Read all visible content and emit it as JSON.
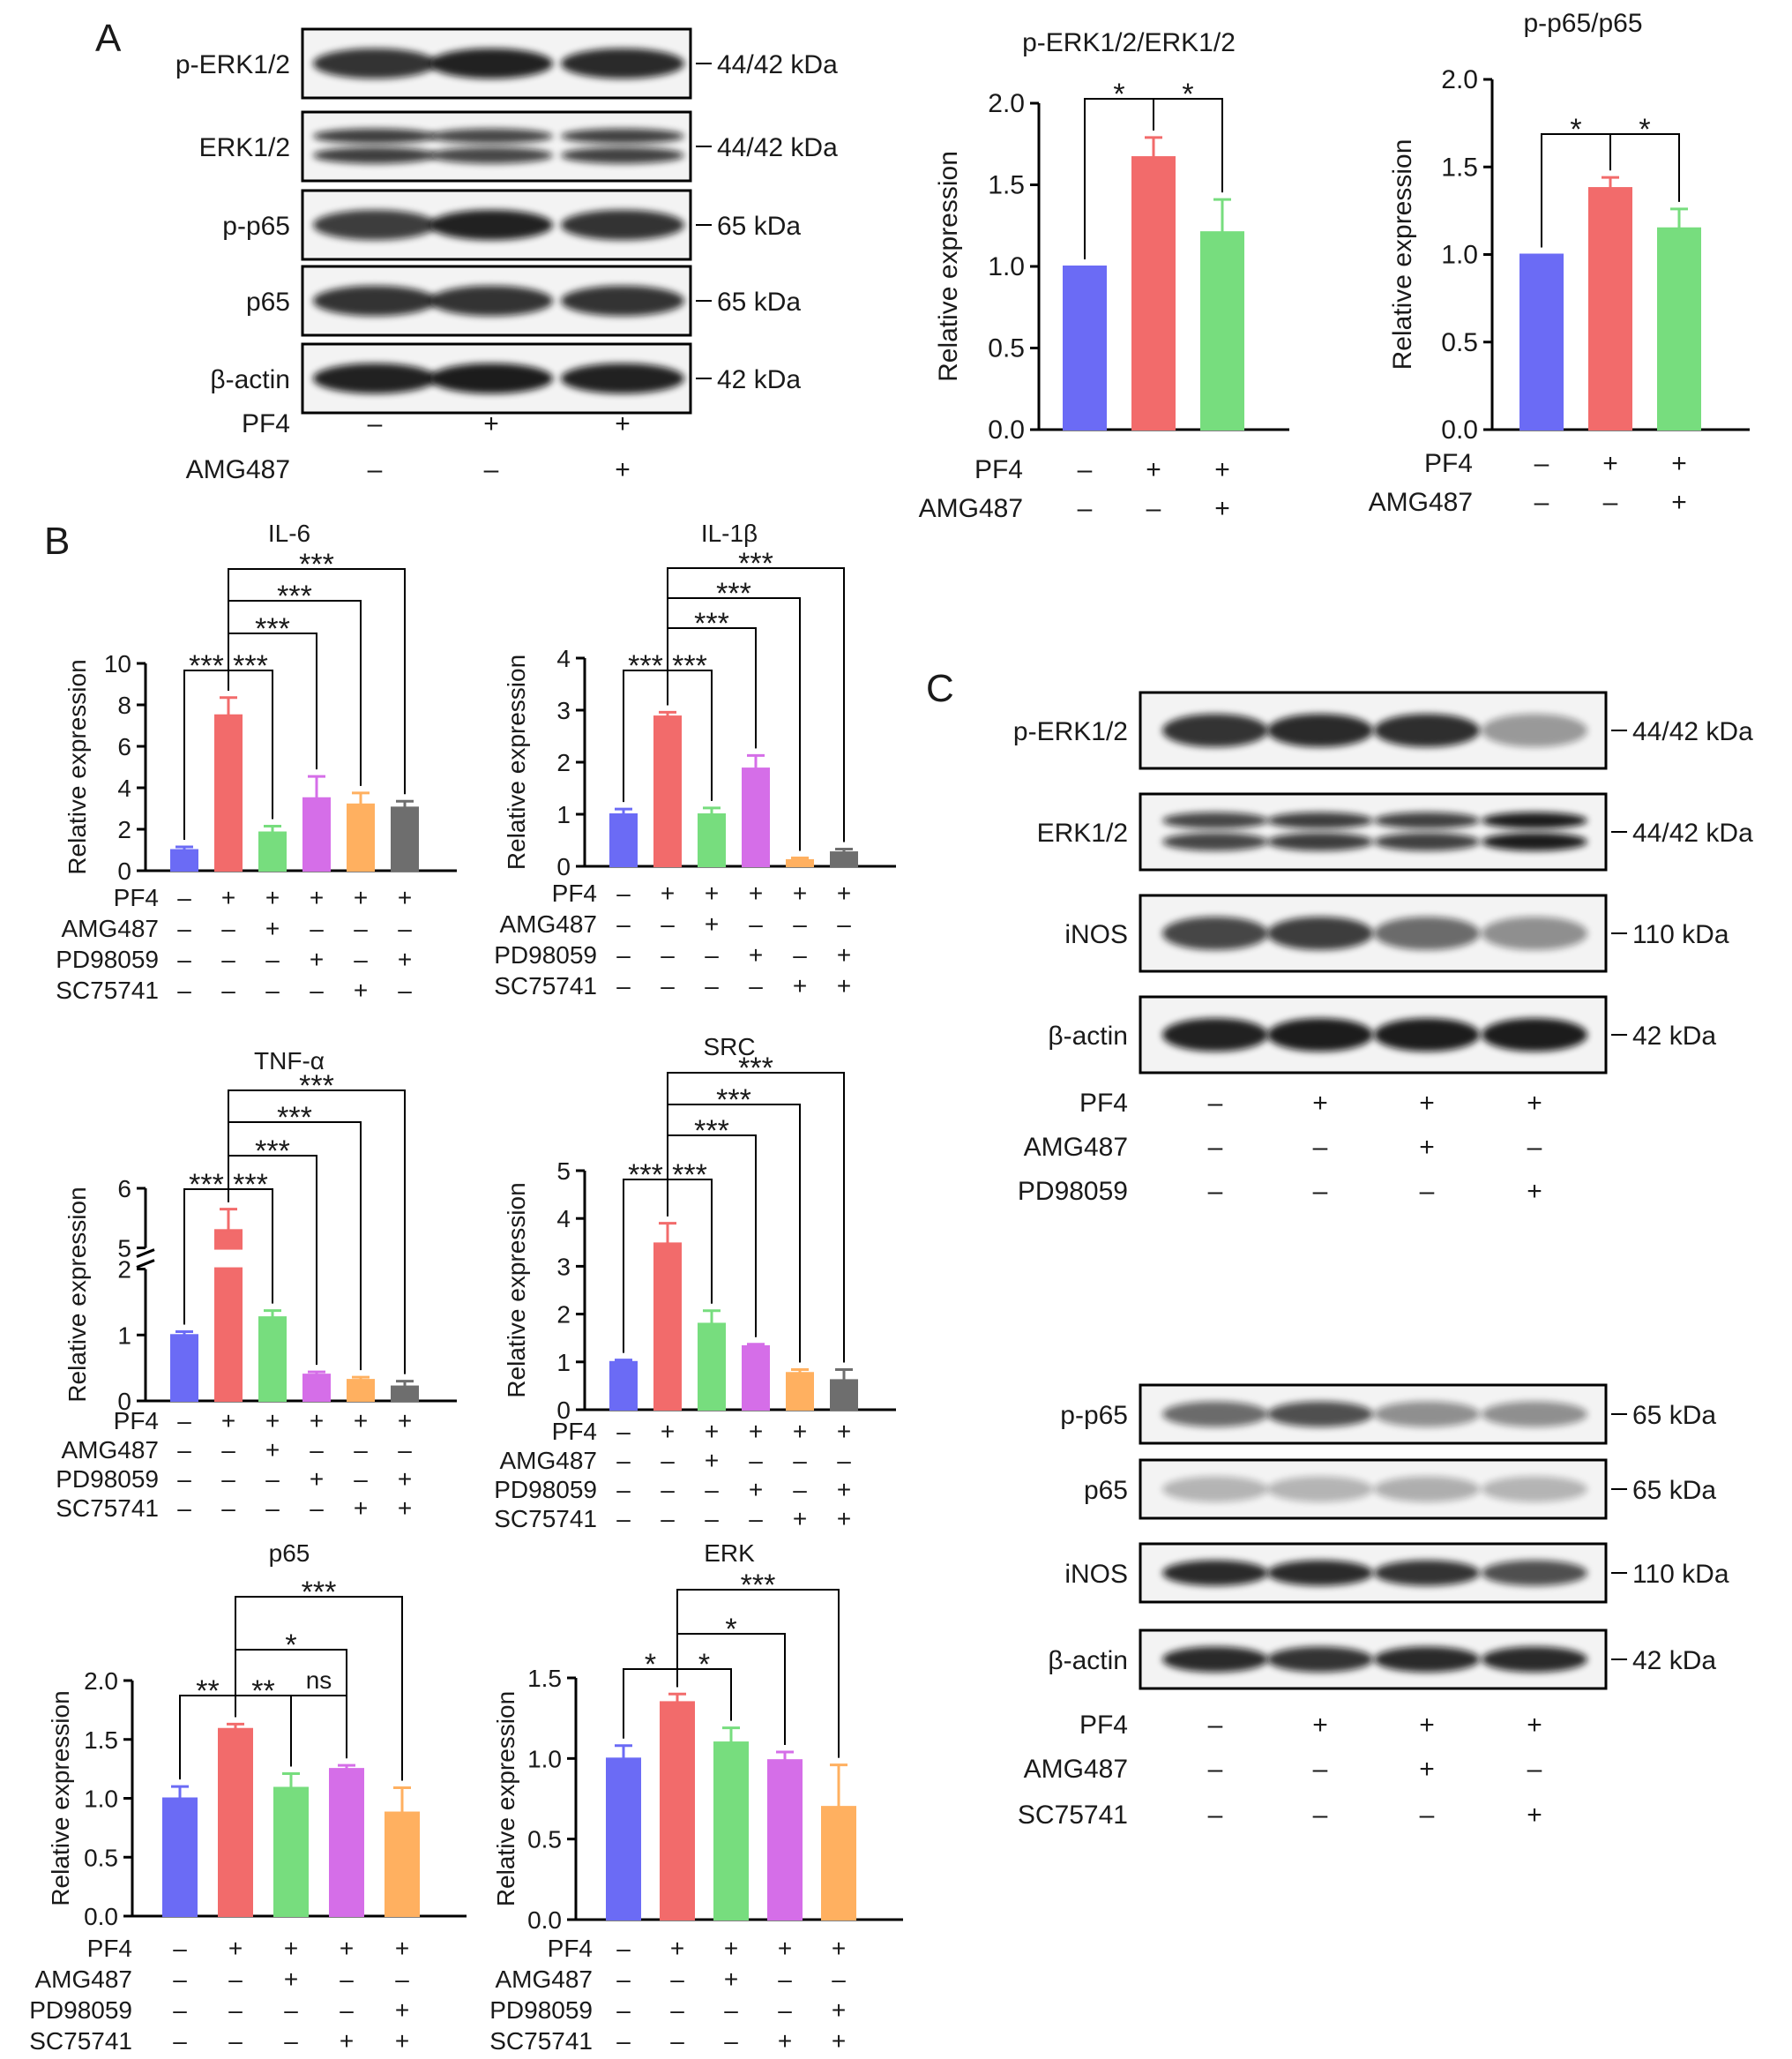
{
  "panel_letters": [
    "A",
    "B",
    "C"
  ],
  "blot_A": {
    "rows": [
      {
        "label": "p-ERK1/2",
        "size": "44/42 kDa",
        "bands": [
          {
            "s": 0.85,
            "d": false
          },
          {
            "s": 0.95,
            "d": false
          },
          {
            "s": 0.9,
            "d": false
          }
        ]
      },
      {
        "label": "ERK1/2",
        "size": "44/42 kDa",
        "bands": [
          {
            "s": 0.8,
            "d": true
          },
          {
            "s": 0.75,
            "d": true
          },
          {
            "s": 0.78,
            "d": true
          }
        ]
      },
      {
        "label": "p-p65",
        "size": "65 kDa",
        "bands": [
          {
            "s": 0.8,
            "d": false
          },
          {
            "s": 0.95,
            "d": false
          },
          {
            "s": 0.85,
            "d": false
          }
        ]
      },
      {
        "label": "p65",
        "size": "65 kDa",
        "bands": [
          {
            "s": 0.85,
            "d": false
          },
          {
            "s": 0.85,
            "d": false
          },
          {
            "s": 0.85,
            "d": false
          }
        ]
      },
      {
        "label": "β-actin",
        "size": "42 kDa",
        "bands": [
          {
            "s": 0.95,
            "d": false
          },
          {
            "s": 0.98,
            "d": false
          },
          {
            "s": 0.95,
            "d": false
          }
        ]
      }
    ],
    "conditions": [
      {
        "name": "PF4",
        "marks": [
          "–",
          "+",
          "+"
        ]
      },
      {
        "name": "AMG487",
        "marks": [
          "–",
          "–",
          "+"
        ]
      }
    ]
  },
  "blot_C_top": {
    "rows": [
      {
        "label": "p-ERK1/2",
        "size": "44/42 kDa",
        "bands": [
          {
            "s": 0.85,
            "d": false
          },
          {
            "s": 0.9,
            "d": false
          },
          {
            "s": 0.88,
            "d": false
          },
          {
            "s": 0.3,
            "d": false
          }
        ]
      },
      {
        "label": "ERK1/2",
        "size": "44/42 kDa",
        "bands": [
          {
            "s": 0.75,
            "d": true
          },
          {
            "s": 0.8,
            "d": true
          },
          {
            "s": 0.78,
            "d": true
          },
          {
            "s": 0.98,
            "d": true
          }
        ]
      },
      {
        "label": "iNOS",
        "size": "110 kDa",
        "bands": [
          {
            "s": 0.75,
            "d": false
          },
          {
            "s": 0.8,
            "d": false
          },
          {
            "s": 0.55,
            "d": false
          },
          {
            "s": 0.35,
            "d": false
          }
        ]
      },
      {
        "label": "β-actin",
        "size": "42 kDa",
        "bands": [
          {
            "s": 0.95,
            "d": false
          },
          {
            "s": 0.98,
            "d": false
          },
          {
            "s": 0.98,
            "d": false
          },
          {
            "s": 0.98,
            "d": false
          }
        ]
      }
    ],
    "conditions": [
      {
        "name": "PF4",
        "marks": [
          "–",
          "+",
          "+",
          "+"
        ]
      },
      {
        "name": "AMG487",
        "marks": [
          "–",
          "–",
          "+",
          "–"
        ]
      },
      {
        "name": "PD98059",
        "marks": [
          "–",
          "–",
          "–",
          "+"
        ]
      }
    ]
  },
  "blot_C_bottom": {
    "rows": [
      {
        "label": "p-p65",
        "size": "65 kDa",
        "bands": [
          {
            "s": 0.55,
            "d": false
          },
          {
            "s": 0.7,
            "d": false
          },
          {
            "s": 0.35,
            "d": false
          },
          {
            "s": 0.35,
            "d": false
          }
        ]
      },
      {
        "label": "p65",
        "size": "65 kDa",
        "bands": [
          {
            "s": 0.15,
            "d": false
          },
          {
            "s": 0.15,
            "d": false
          },
          {
            "s": 0.18,
            "d": false
          },
          {
            "s": 0.15,
            "d": false
          }
        ]
      },
      {
        "label": "iNOS",
        "size": "110 kDa",
        "bands": [
          {
            "s": 0.9,
            "d": false
          },
          {
            "s": 0.9,
            "d": false
          },
          {
            "s": 0.85,
            "d": false
          },
          {
            "s": 0.7,
            "d": false
          }
        ]
      },
      {
        "label": "β-actin",
        "size": "42 kDa",
        "bands": [
          {
            "s": 0.9,
            "d": false
          },
          {
            "s": 0.85,
            "d": false
          },
          {
            "s": 0.9,
            "d": false
          },
          {
            "s": 0.9,
            "d": false
          }
        ]
      }
    ],
    "conditions": [
      {
        "name": "PF4",
        "marks": [
          "–",
          "+",
          "+",
          "+"
        ]
      },
      {
        "name": "AMG487",
        "marks": [
          "–",
          "–",
          "+",
          "–"
        ]
      },
      {
        "name": "SC75741",
        "marks": [
          "–",
          "–",
          "–",
          "+"
        ]
      }
    ]
  },
  "colors": {
    "blue": "#6b6bf5",
    "red": "#f26b6b",
    "green": "#77dd7e",
    "purple": "#d56ee8",
    "orange": "#ffb060",
    "gray": "#6e6e6e"
  },
  "chart_data": [
    {
      "id": "A1",
      "type": "bar",
      "title": "p-ERK1/2/ERK1/2",
      "xlabel": "",
      "ylabel": "Relative expression",
      "ylim": [
        0,
        2.0
      ],
      "yticks": [
        "0.0",
        "0.5",
        "1.0",
        "1.5",
        "2.0"
      ],
      "values": [
        1.0,
        1.67,
        1.21
      ],
      "errors": [
        0,
        0.12,
        0.2
      ],
      "colors": [
        "blue",
        "red",
        "green"
      ],
      "conditions": [
        {
          "name": "PF4",
          "marks": [
            "–",
            "+",
            "+"
          ]
        },
        {
          "name": "AMG487",
          "marks": [
            "–",
            "–",
            "+"
          ]
        }
      ],
      "sig": [
        {
          "a": 0,
          "b": 1,
          "label": "*"
        },
        {
          "a": 1,
          "b": 2,
          "label": "*"
        }
      ]
    },
    {
      "id": "A2",
      "type": "bar",
      "title": "p-p65/p65",
      "xlabel": "",
      "ylabel": "Relative expression",
      "ylim": [
        0,
        2.0
      ],
      "yticks": [
        "0.0",
        "0.5",
        "1.0",
        "1.5",
        "2.0"
      ],
      "values": [
        1.0,
        1.38,
        1.15
      ],
      "errors": [
        0,
        0.06,
        0.11
      ],
      "colors": [
        "blue",
        "red",
        "green"
      ],
      "conditions": [
        {
          "name": "PF4",
          "marks": [
            "–",
            "+",
            "+"
          ]
        },
        {
          "name": "AMG487",
          "marks": [
            "–",
            "–",
            "+"
          ]
        }
      ],
      "sig": [
        {
          "a": 0,
          "b": 1,
          "label": "*"
        },
        {
          "a": 1,
          "b": 2,
          "label": "*"
        }
      ]
    },
    {
      "id": "IL6",
      "type": "bar",
      "title": "IL-6",
      "xlabel": "",
      "ylabel": "Relative expression",
      "ylim": [
        0,
        10
      ],
      "yticks": [
        "0",
        "2",
        "4",
        "6",
        "8",
        "10"
      ],
      "values": [
        1.0,
        7.5,
        1.85,
        3.5,
        3.2,
        3.05
      ],
      "errors": [
        0.15,
        0.85,
        0.3,
        1.05,
        0.55,
        0.3
      ],
      "colors": [
        "blue",
        "red",
        "green",
        "purple",
        "orange",
        "gray"
      ],
      "conditions": [
        {
          "name": "PF4",
          "marks": [
            "–",
            "+",
            "+",
            "+",
            "+",
            "+"
          ]
        },
        {
          "name": "AMG487",
          "marks": [
            "–",
            "–",
            "+",
            "–",
            "–",
            "–"
          ]
        },
        {
          "name": "PD98059",
          "marks": [
            "–",
            "–",
            "–",
            "+",
            "–",
            "+"
          ]
        },
        {
          "name": "SC75741",
          "marks": [
            "–",
            "–",
            "–",
            "–",
            "+",
            "–"
          ]
        }
      ],
      "sig": [
        {
          "a": 0,
          "b": 1,
          "label": "***"
        },
        {
          "a": 1,
          "b": 2,
          "label": "***"
        },
        {
          "a": 1,
          "b": 3,
          "label": "***"
        },
        {
          "a": 1,
          "b": 4,
          "label": "***"
        },
        {
          "a": 1,
          "b": 5,
          "label": "***"
        }
      ]
    },
    {
      "id": "IL1B",
      "type": "bar",
      "title": "IL-1β",
      "xlabel": "",
      "ylabel": "Relative expression",
      "ylim": [
        0,
        4
      ],
      "yticks": [
        "0",
        "1",
        "2",
        "3",
        "4"
      ],
      "values": [
        1.0,
        2.88,
        1.0,
        1.88,
        0.12,
        0.27
      ],
      "errors": [
        0.1,
        0.08,
        0.12,
        0.25,
        0.04,
        0.06
      ],
      "colors": [
        "blue",
        "red",
        "green",
        "purple",
        "orange",
        "gray"
      ],
      "conditions": [
        {
          "name": "PF4",
          "marks": [
            "–",
            "+",
            "+",
            "+",
            "+",
            "+"
          ]
        },
        {
          "name": "AMG487",
          "marks": [
            "–",
            "–",
            "+",
            "–",
            "–",
            "–"
          ]
        },
        {
          "name": "PD98059",
          "marks": [
            "–",
            "–",
            "–",
            "+",
            "–",
            "+"
          ]
        },
        {
          "name": "SC75741",
          "marks": [
            "–",
            "–",
            "–",
            "–",
            "+",
            "+"
          ]
        }
      ],
      "sig": [
        {
          "a": 0,
          "b": 1,
          "label": "***"
        },
        {
          "a": 1,
          "b": 2,
          "label": "***"
        },
        {
          "a": 1,
          "b": 3,
          "label": "***"
        },
        {
          "a": 1,
          "b": 4,
          "label": "***"
        },
        {
          "a": 1,
          "b": 5,
          "label": "***"
        }
      ]
    },
    {
      "id": "TNF",
      "type": "bar",
      "title": "TNF-α",
      "xlabel": "",
      "ylabel": "Relative expression",
      "ylim": [
        0,
        6
      ],
      "broken": [
        2,
        5
      ],
      "yticks": [
        "0",
        "1",
        "2",
        "5",
        "6"
      ],
      "values": [
        1.0,
        5.3,
        1.27,
        0.4,
        0.32,
        0.22
      ],
      "errors": [
        0.05,
        0.35,
        0.1,
        0.04,
        0.04,
        0.08
      ],
      "colors": [
        "blue",
        "red",
        "green",
        "purple",
        "orange",
        "gray"
      ],
      "conditions": [
        {
          "name": "PF4",
          "marks": [
            "–",
            "+",
            "+",
            "+",
            "+",
            "+"
          ]
        },
        {
          "name": "AMG487",
          "marks": [
            "–",
            "–",
            "+",
            "–",
            "–",
            "–"
          ]
        },
        {
          "name": "PD98059",
          "marks": [
            "–",
            "–",
            "–",
            "+",
            "–",
            "+"
          ]
        },
        {
          "name": "SC75741",
          "marks": [
            "–",
            "–",
            "–",
            "–",
            "+",
            "+"
          ]
        }
      ],
      "sig": [
        {
          "a": 0,
          "b": 1,
          "label": "***"
        },
        {
          "a": 1,
          "b": 2,
          "label": "***"
        },
        {
          "a": 1,
          "b": 3,
          "label": "***"
        },
        {
          "a": 1,
          "b": 4,
          "label": "***"
        },
        {
          "a": 1,
          "b": 5,
          "label": "***"
        }
      ]
    },
    {
      "id": "SRC",
      "type": "bar",
      "title": "SRC",
      "xlabel": "",
      "ylabel": "Relative expression",
      "ylim": [
        0,
        5
      ],
      "yticks": [
        "0",
        "1",
        "2",
        "3",
        "4",
        "5"
      ],
      "values": [
        1.0,
        3.48,
        1.8,
        1.33,
        0.77,
        0.62
      ],
      "errors": [
        0.04,
        0.42,
        0.27,
        0.04,
        0.07,
        0.22
      ],
      "colors": [
        "blue",
        "red",
        "green",
        "purple",
        "orange",
        "gray"
      ],
      "conditions": [
        {
          "name": "PF4",
          "marks": [
            "–",
            "+",
            "+",
            "+",
            "+",
            "+"
          ]
        },
        {
          "name": "AMG487",
          "marks": [
            "–",
            "–",
            "+",
            "–",
            "–",
            "–"
          ]
        },
        {
          "name": "PD98059",
          "marks": [
            "–",
            "–",
            "–",
            "+",
            "–",
            "+"
          ]
        },
        {
          "name": "SC75741",
          "marks": [
            "–",
            "–",
            "–",
            "–",
            "+",
            "+"
          ]
        }
      ],
      "sig": [
        {
          "a": 0,
          "b": 1,
          "label": "***"
        },
        {
          "a": 1,
          "b": 2,
          "label": "***"
        },
        {
          "a": 1,
          "b": 3,
          "label": "***"
        },
        {
          "a": 1,
          "b": 4,
          "label": "***"
        },
        {
          "a": 1,
          "b": 5,
          "label": "***"
        }
      ]
    },
    {
      "id": "P65",
      "type": "bar",
      "title": "p65",
      "xlabel": "",
      "ylabel": "Relative expression",
      "ylim": [
        0,
        2.0
      ],
      "yticks": [
        "0.0",
        "0.5",
        "1.0",
        "1.5",
        "2.0"
      ],
      "values": [
        1.0,
        1.59,
        1.09,
        1.25,
        0.88
      ],
      "errors": [
        0.1,
        0.04,
        0.12,
        0.03,
        0.21
      ],
      "colors": [
        "blue",
        "red",
        "green",
        "purple",
        "orange"
      ],
      "conditions": [
        {
          "name": "PF4",
          "marks": [
            "–",
            "+",
            "+",
            "+",
            "+"
          ]
        },
        {
          "name": "AMG487",
          "marks": [
            "–",
            "–",
            "+",
            "–",
            "–"
          ]
        },
        {
          "name": "PD98059",
          "marks": [
            "–",
            "–",
            "–",
            "–",
            "+"
          ]
        },
        {
          "name": "SC75741",
          "marks": [
            "–",
            "–",
            "–",
            "+",
            "+"
          ]
        }
      ],
      "sig": [
        {
          "a": 0,
          "b": 1,
          "label": "**"
        },
        {
          "a": 1,
          "b": 2,
          "label": "**"
        },
        {
          "a": 2,
          "b": 3,
          "label": "ns"
        },
        {
          "a": 1,
          "b": 3,
          "label": "*"
        },
        {
          "a": 1,
          "b": 4,
          "label": "***"
        }
      ]
    },
    {
      "id": "ERK",
      "type": "bar",
      "title": "ERK",
      "xlabel": "",
      "ylabel": "Relative expression",
      "ylim": [
        0,
        1.5
      ],
      "yticks": [
        "0.0",
        "0.5",
        "1.0",
        "1.5"
      ],
      "values": [
        1.0,
        1.35,
        1.1,
        0.99,
        0.7
      ],
      "errors": [
        0.08,
        0.05,
        0.09,
        0.05,
        0.26
      ],
      "colors": [
        "blue",
        "red",
        "green",
        "purple",
        "orange"
      ],
      "conditions": [
        {
          "name": "PF4",
          "marks": [
            "–",
            "+",
            "+",
            "+",
            "+"
          ]
        },
        {
          "name": "AMG487",
          "marks": [
            "–",
            "–",
            "+",
            "–",
            "–"
          ]
        },
        {
          "name": "PD98059",
          "marks": [
            "–",
            "–",
            "–",
            "–",
            "+"
          ]
        },
        {
          "name": "SC75741",
          "marks": [
            "–",
            "–",
            "–",
            "+",
            "+"
          ]
        }
      ],
      "sig": [
        {
          "a": 0,
          "b": 1,
          "label": "*"
        },
        {
          "a": 1,
          "b": 2,
          "label": "*"
        },
        {
          "a": 1,
          "b": 3,
          "label": "*"
        },
        {
          "a": 1,
          "b": 4,
          "label": "***"
        }
      ]
    }
  ]
}
